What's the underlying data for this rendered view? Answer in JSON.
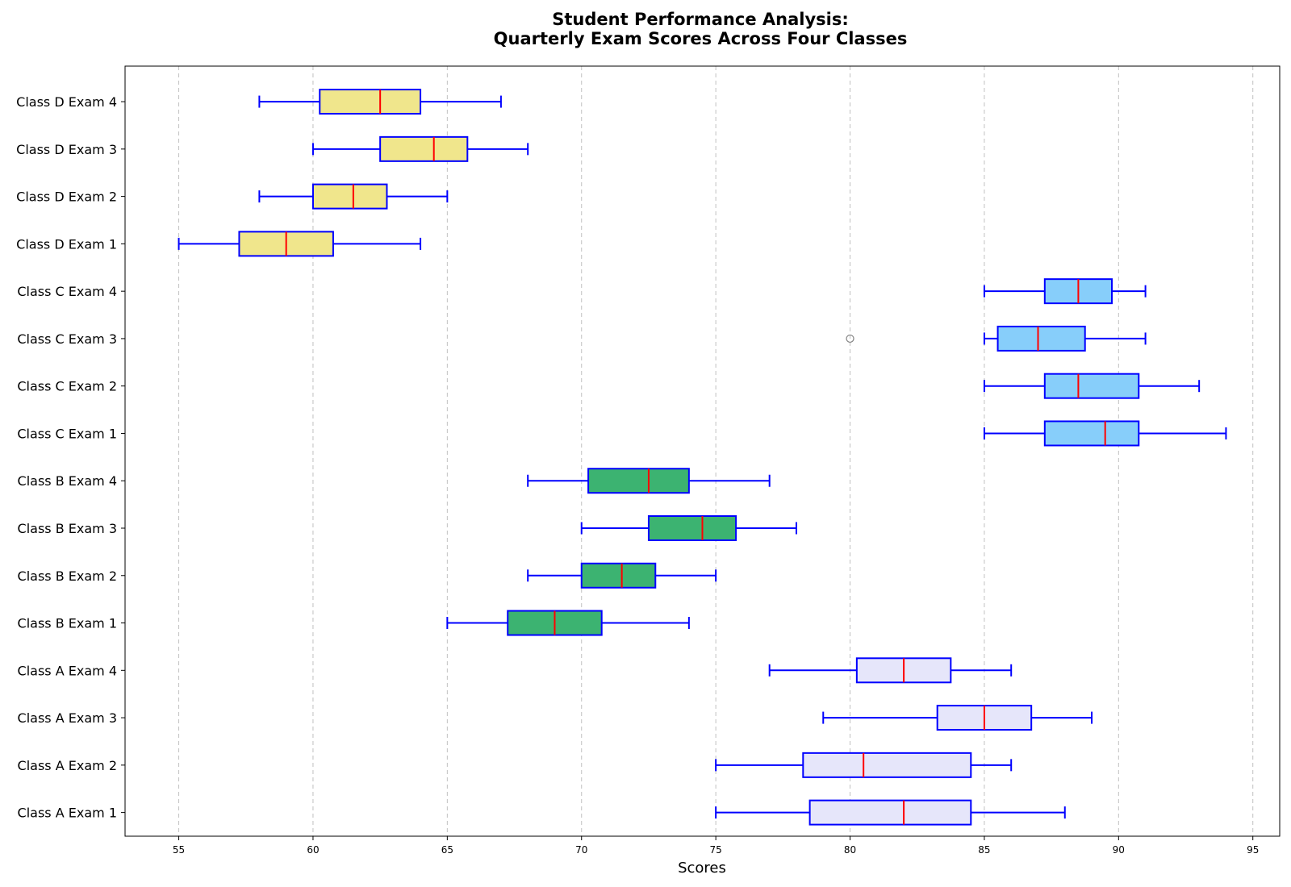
{
  "chart_data": {
    "type": "box",
    "orientation": "horizontal",
    "title_line1": "Student Performance Analysis:",
    "title_line2": "Quarterly Exam Scores Across Four Classes",
    "xlabel": "Scores",
    "ylabel": "",
    "xlim": [
      53,
      96
    ],
    "xticks": [
      55,
      60,
      65,
      70,
      75,
      80,
      85,
      90,
      95
    ],
    "grid": "x dashed",
    "colors": {
      "Class A": "#e6e6fa",
      "Class B": "#3cb371",
      "Class C": "#87cefa",
      "Class D": "#f0e68c",
      "box_edge": "#0000ff",
      "whisker": "#0000ff",
      "median": "#ff0000",
      "outlier": "#808080",
      "grid": "#c0c0c0"
    },
    "boxes": [
      {
        "label": "Class A Exam 1",
        "group": "Class A",
        "whisker_low": 75,
        "q1": 78.5,
        "median": 82,
        "q3": 84.5,
        "whisker_high": 88,
        "outliers": []
      },
      {
        "label": "Class A Exam 2",
        "group": "Class A",
        "whisker_low": 75,
        "q1": 78.25,
        "median": 80.5,
        "q3": 84.5,
        "whisker_high": 86,
        "outliers": []
      },
      {
        "label": "Class A Exam 3",
        "group": "Class A",
        "whisker_low": 79,
        "q1": 83.25,
        "median": 85,
        "q3": 86.75,
        "whisker_high": 89,
        "outliers": []
      },
      {
        "label": "Class A Exam 4",
        "group": "Class A",
        "whisker_low": 77,
        "q1": 80.25,
        "median": 82,
        "q3": 83.75,
        "whisker_high": 86,
        "outliers": []
      },
      {
        "label": "Class B Exam 1",
        "group": "Class B",
        "whisker_low": 65,
        "q1": 67.25,
        "median": 69,
        "q3": 70.75,
        "whisker_high": 74,
        "outliers": []
      },
      {
        "label": "Class B Exam 2",
        "group": "Class B",
        "whisker_low": 68,
        "q1": 70,
        "median": 71.5,
        "q3": 72.75,
        "whisker_high": 75,
        "outliers": []
      },
      {
        "label": "Class B Exam 3",
        "group": "Class B",
        "whisker_low": 70,
        "q1": 72.5,
        "median": 74.5,
        "q3": 75.75,
        "whisker_high": 78,
        "outliers": []
      },
      {
        "label": "Class B Exam 4",
        "group": "Class B",
        "whisker_low": 68,
        "q1": 70.25,
        "median": 72.5,
        "q3": 74,
        "whisker_high": 77,
        "outliers": []
      },
      {
        "label": "Class C Exam 1",
        "group": "Class C",
        "whisker_low": 85,
        "q1": 87.25,
        "median": 89.5,
        "q3": 90.75,
        "whisker_high": 94,
        "outliers": []
      },
      {
        "label": "Class C Exam 2",
        "group": "Class C",
        "whisker_low": 85,
        "q1": 87.25,
        "median": 88.5,
        "q3": 90.75,
        "whisker_high": 93,
        "outliers": []
      },
      {
        "label": "Class C Exam 3",
        "group": "Class C",
        "whisker_low": 85,
        "q1": 85.5,
        "median": 87,
        "q3": 88.75,
        "whisker_high": 91,
        "outliers": [
          80
        ]
      },
      {
        "label": "Class C Exam 4",
        "group": "Class C",
        "whisker_low": 85,
        "q1": 87.25,
        "median": 88.5,
        "q3": 89.75,
        "whisker_high": 91,
        "outliers": []
      },
      {
        "label": "Class D Exam 1",
        "group": "Class D",
        "whisker_low": 55,
        "q1": 57.25,
        "median": 59,
        "q3": 60.75,
        "whisker_high": 64,
        "outliers": []
      },
      {
        "label": "Class D Exam 2",
        "group": "Class D",
        "whisker_low": 58,
        "q1": 60,
        "median": 61.5,
        "q3": 62.75,
        "whisker_high": 65,
        "outliers": []
      },
      {
        "label": "Class D Exam 3",
        "group": "Class D",
        "whisker_low": 60,
        "q1": 62.5,
        "median": 64.5,
        "q3": 65.75,
        "whisker_high": 68,
        "outliers": []
      },
      {
        "label": "Class D Exam 4",
        "group": "Class D",
        "whisker_low": 58,
        "q1": 60.25,
        "median": 62.5,
        "q3": 64,
        "whisker_high": 67,
        "outliers": []
      }
    ]
  }
}
